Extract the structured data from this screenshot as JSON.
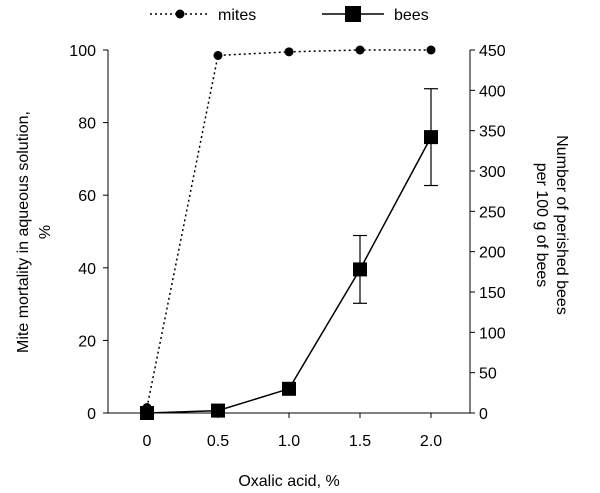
{
  "chart_data": {
    "type": "line",
    "x_label": "Oxalic acid, %",
    "x_categories": [
      "0",
      "0.5",
      "1.0",
      "1.5",
      "2.0"
    ],
    "x_values": [
      0,
      0.5,
      1.0,
      1.5,
      2.0
    ],
    "y_left": {
      "title_line1": "Mite mortality in aqueous solution,",
      "title_line2": "%",
      "range": [
        0,
        100
      ],
      "ticks": [
        0,
        20,
        40,
        60,
        80,
        100
      ]
    },
    "y_right": {
      "title_line1": "Number of perished bees",
      "title_line2": "per 100 g of bees",
      "range": [
        0,
        450
      ],
      "ticks": [
        0,
        50,
        100,
        150,
        200,
        250,
        300,
        350,
        400,
        450
      ]
    },
    "series": [
      {
        "name": "mites",
        "axis": "left",
        "style": "dotted",
        "marker": "circle",
        "x": [
          0,
          0.5,
          1.0,
          1.5,
          2.0
        ],
        "values": [
          1.5,
          98.5,
          99.5,
          100,
          100
        ]
      },
      {
        "name": "bees",
        "axis": "right",
        "style": "solid",
        "marker": "square",
        "x": [
          0,
          0.5,
          1.0,
          1.5,
          2.0
        ],
        "values": [
          0,
          3,
          30,
          178,
          342
        ],
        "error": [
          null,
          null,
          null,
          42,
          60
        ]
      }
    ],
    "legend": {
      "placement": "top"
    },
    "grid": false
  }
}
